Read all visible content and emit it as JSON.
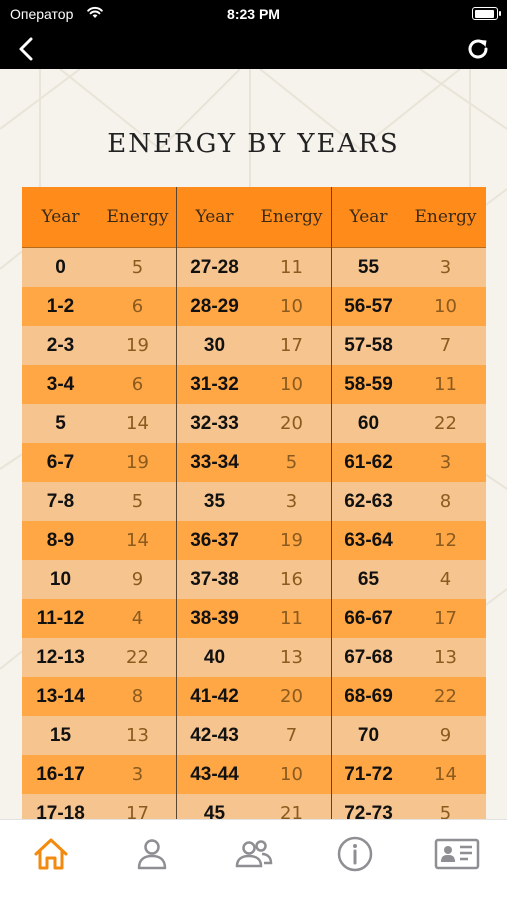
{
  "status_bar": {
    "carrier": "Оператор",
    "time": "8:23 PM"
  },
  "page": {
    "title": "ENERGY BY YEARS"
  },
  "table": {
    "headers": [
      "Year",
      "Energy",
      "Year",
      "Energy",
      "Year",
      "Energy"
    ],
    "rows": [
      [
        [
          "0",
          "5"
        ],
        [
          "27-28",
          "11"
        ],
        [
          "55",
          "3"
        ]
      ],
      [
        [
          "1-2",
          "6"
        ],
        [
          "28-29",
          "10"
        ],
        [
          "56-57",
          "10"
        ]
      ],
      [
        [
          "2-3",
          "19"
        ],
        [
          "30",
          "17"
        ],
        [
          "57-58",
          "7"
        ]
      ],
      [
        [
          "3-4",
          "6"
        ],
        [
          "31-32",
          "10"
        ],
        [
          "58-59",
          "11"
        ]
      ],
      [
        [
          "5",
          "14"
        ],
        [
          "32-33",
          "20"
        ],
        [
          "60",
          "22"
        ]
      ],
      [
        [
          "6-7",
          "19"
        ],
        [
          "33-34",
          "5"
        ],
        [
          "61-62",
          "3"
        ]
      ],
      [
        [
          "7-8",
          "5"
        ],
        [
          "35",
          "3"
        ],
        [
          "62-63",
          "8"
        ]
      ],
      [
        [
          "8-9",
          "14"
        ],
        [
          "36-37",
          "19"
        ],
        [
          "63-64",
          "12"
        ]
      ],
      [
        [
          "10",
          "9"
        ],
        [
          "37-38",
          "16"
        ],
        [
          "65",
          "4"
        ]
      ],
      [
        [
          "11-12",
          "4"
        ],
        [
          "38-39",
          "11"
        ],
        [
          "66-67",
          "17"
        ]
      ],
      [
        [
          "12-13",
          "22"
        ],
        [
          "40",
          "13"
        ],
        [
          "67-68",
          "13"
        ]
      ],
      [
        [
          "13-14",
          "8"
        ],
        [
          "41-42",
          "20"
        ],
        [
          "68-69",
          "22"
        ]
      ],
      [
        [
          "15",
          "13"
        ],
        [
          "42-43",
          "7"
        ],
        [
          "70",
          "9"
        ]
      ],
      [
        [
          "16-17",
          "3"
        ],
        [
          "43-44",
          "10"
        ],
        [
          "71-72",
          "14"
        ]
      ],
      [
        [
          "17-18",
          "17"
        ],
        [
          "45",
          "21"
        ],
        [
          "72-73",
          "5"
        ]
      ]
    ]
  },
  "tab_bar": {
    "active_color": "#f28a10",
    "inactive_color": "#8e8e93",
    "tabs": [
      "home-icon",
      "person-icon",
      "people-icon",
      "info-icon",
      "contact-card-icon"
    ]
  }
}
